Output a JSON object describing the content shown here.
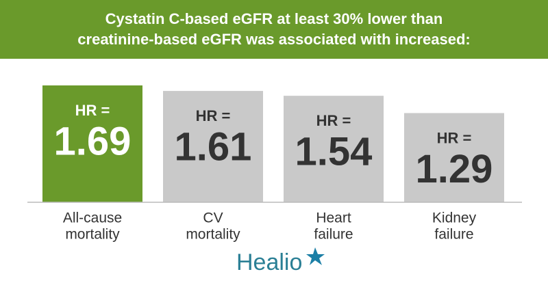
{
  "chart_data": {
    "type": "bar",
    "title": [
      "Cystatin C-based eGFR at least 30% lower than",
      "creatinine-based eGFR was associated with increased:"
    ],
    "value_prefix": "HR =",
    "categories": [
      [
        "All-cause",
        "mortality"
      ],
      [
        "CV",
        "mortality"
      ],
      [
        "Heart",
        "failure"
      ],
      [
        "Kidney",
        "failure"
      ]
    ],
    "values": [
      1.69,
      1.61,
      1.54,
      1.29
    ],
    "colors": [
      "#6a9a2b",
      "#c9c9c9",
      "#c9c9c9",
      "#c9c9c9"
    ],
    "text_colors": [
      "#ffffff",
      "#333333",
      "#333333",
      "#333333"
    ],
    "brand": "Healio"
  }
}
